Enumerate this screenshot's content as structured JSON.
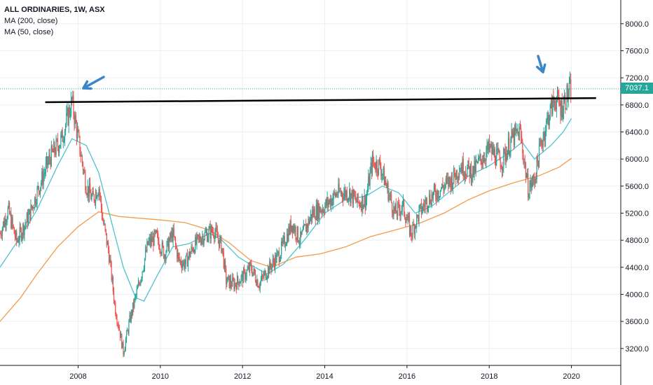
{
  "legend": {
    "title": "ALL ORDINARIES, 1W, ASX",
    "ma200": "MA (200, close)",
    "ma50": "MA (50, close)"
  },
  "last_price_label": "7037.1",
  "colors": {
    "up": "#26a69a",
    "down": "#ef5350",
    "ma50": "#4ec3d0",
    "ma200": "#f39c4a",
    "resistance": "#000000",
    "arrow": "#3a86c8",
    "grid": "#e8f1f5"
  },
  "chart_data": {
    "type": "candlestick",
    "title": "ALL ORDINARIES, 1W, ASX",
    "x_range": [
      2006.1,
      2021.2
    ],
    "ylim": [
      2950,
      8350
    ],
    "grid": true,
    "x_ticks": [
      "2008",
      "2010",
      "2012",
      "2014",
      "2016",
      "2018",
      "2020"
    ],
    "x_tick_values": [
      2008,
      2010,
      2012,
      2014,
      2016,
      2018,
      2020
    ],
    "y_ticks": [
      "8000.0",
      "7600.0",
      "7200.0",
      "6800.0",
      "6400.0",
      "6000.0",
      "5600.0",
      "5200.0",
      "4800.0",
      "4400.0",
      "4000.0",
      "3600.0",
      "3200.0"
    ],
    "y_tick_values": [
      8000,
      7600,
      7200,
      6800,
      6400,
      6000,
      5600,
      5200,
      4800,
      4400,
      4000,
      3600,
      3200
    ],
    "last_price": 7037.1,
    "price_path": [
      [
        2006.1,
        4900
      ],
      [
        2006.3,
        5250
      ],
      [
        2006.5,
        4780
      ],
      [
        2006.8,
        5150
      ],
      [
        2007.0,
        5500
      ],
      [
        2007.3,
        6000
      ],
      [
        2007.6,
        6300
      ],
      [
        2007.85,
        6850
      ],
      [
        2008.0,
        6300
      ],
      [
        2008.2,
        5600
      ],
      [
        2008.35,
        5400
      ],
      [
        2008.5,
        5600
      ],
      [
        2008.6,
        5100
      ],
      [
        2008.75,
        4600
      ],
      [
        2008.9,
        3800
      ],
      [
        2009.0,
        3500
      ],
      [
        2009.1,
        3150
      ],
      [
        2009.25,
        3600
      ],
      [
        2009.5,
        4200
      ],
      [
        2009.7,
        4750
      ],
      [
        2009.9,
        4850
      ],
      [
        2010.1,
        4600
      ],
      [
        2010.3,
        4900
      ],
      [
        2010.45,
        4500
      ],
      [
        2010.6,
        4450
      ],
      [
        2010.8,
        4700
      ],
      [
        2011.0,
        4850
      ],
      [
        2011.3,
        4950
      ],
      [
        2011.5,
        4700
      ],
      [
        2011.6,
        4200
      ],
      [
        2011.8,
        4150
      ],
      [
        2012.0,
        4250
      ],
      [
        2012.2,
        4400
      ],
      [
        2012.4,
        4150
      ],
      [
        2012.6,
        4350
      ],
      [
        2012.9,
        4600
      ],
      [
        2013.2,
        5050
      ],
      [
        2013.4,
        4800
      ],
      [
        2013.7,
        5200
      ],
      [
        2014.0,
        5300
      ],
      [
        2014.3,
        5500
      ],
      [
        2014.6,
        5500
      ],
      [
        2014.8,
        5350
      ],
      [
        2015.0,
        5400
      ],
      [
        2015.15,
        5950
      ],
      [
        2015.35,
        5900
      ],
      [
        2015.55,
        5500
      ],
      [
        2015.7,
        5200
      ],
      [
        2015.9,
        5300
      ],
      [
        2016.1,
        4900
      ],
      [
        2016.3,
        5200
      ],
      [
        2016.5,
        5400
      ],
      [
        2016.7,
        5500
      ],
      [
        2016.9,
        5600
      ],
      [
        2017.1,
        5700
      ],
      [
        2017.3,
        5900
      ],
      [
        2017.6,
        5800
      ],
      [
        2017.8,
        6000
      ],
      [
        2018.0,
        6150
      ],
      [
        2018.3,
        5950
      ],
      [
        2018.55,
        6300
      ],
      [
        2018.75,
        6400
      ],
      [
        2018.95,
        5550
      ],
      [
        2019.1,
        5700
      ],
      [
        2019.25,
        6200
      ],
      [
        2019.45,
        6650
      ],
      [
        2019.6,
        6900
      ],
      [
        2019.75,
        6750
      ],
      [
        2019.9,
        6950
      ],
      [
        2020.0,
        7037.1
      ]
    ],
    "ma50": [
      [
        2006.1,
        4400
      ],
      [
        2006.6,
        4850
      ],
      [
        2007.0,
        5250
      ],
      [
        2007.5,
        5900
      ],
      [
        2007.85,
        6300
      ],
      [
        2008.2,
        6200
      ],
      [
        2008.5,
        5800
      ],
      [
        2008.8,
        5100
      ],
      [
        2009.1,
        4400
      ],
      [
        2009.4,
        3950
      ],
      [
        2009.6,
        3900
      ],
      [
        2009.9,
        4250
      ],
      [
        2010.3,
        4700
      ],
      [
        2010.7,
        4750
      ],
      [
        2011.2,
        4900
      ],
      [
        2011.5,
        4800
      ],
      [
        2011.9,
        4550
      ],
      [
        2012.3,
        4400
      ],
      [
        2012.6,
        4300
      ],
      [
        2013.0,
        4450
      ],
      [
        2013.5,
        4800
      ],
      [
        2014.0,
        5200
      ],
      [
        2014.5,
        5400
      ],
      [
        2015.0,
        5450
      ],
      [
        2015.4,
        5600
      ],
      [
        2015.8,
        5500
      ],
      [
        2016.2,
        5200
      ],
      [
        2016.6,
        5300
      ],
      [
        2017.0,
        5500
      ],
      [
        2017.5,
        5750
      ],
      [
        2018.0,
        5900
      ],
      [
        2018.5,
        6100
      ],
      [
        2018.8,
        6250
      ],
      [
        2019.1,
        6000
      ],
      [
        2019.5,
        6200
      ],
      [
        2019.8,
        6400
      ],
      [
        2020.0,
        6600
      ]
    ],
    "ma200": [
      [
        2006.1,
        3600
      ],
      [
        2006.6,
        3950
      ],
      [
        2007.0,
        4300
      ],
      [
        2007.5,
        4700
      ],
      [
        2008.0,
        5000
      ],
      [
        2008.5,
        5220
      ],
      [
        2009.0,
        5150
      ],
      [
        2010.0,
        5100
      ],
      [
        2010.6,
        5060
      ],
      [
        2011.2,
        4950
      ],
      [
        2011.7,
        4750
      ],
      [
        2012.2,
        4500
      ],
      [
        2012.7,
        4400
      ],
      [
        2013.3,
        4550
      ],
      [
        2013.9,
        4600
      ],
      [
        2014.5,
        4700
      ],
      [
        2015.1,
        4850
      ],
      [
        2015.7,
        4950
      ],
      [
        2016.3,
        5050
      ],
      [
        2016.9,
        5200
      ],
      [
        2017.5,
        5400
      ],
      [
        2018.0,
        5530
      ],
      [
        2018.6,
        5650
      ],
      [
        2019.2,
        5750
      ],
      [
        2019.7,
        5880
      ],
      [
        2020.0,
        6010
      ]
    ],
    "resistance_line": [
      [
        2007.2,
        6840
      ],
      [
        2020.6,
        6900
      ]
    ]
  }
}
